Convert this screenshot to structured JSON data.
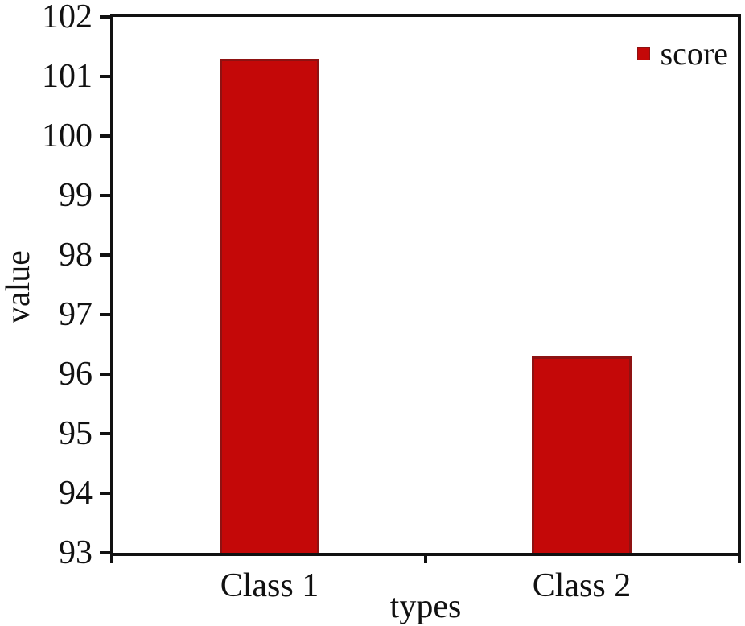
{
  "chart_data": {
    "type": "bar",
    "categories": [
      "Class 1",
      "Class 2"
    ],
    "series": [
      {
        "name": "score",
        "values": [
          101.3,
          96.3
        ]
      }
    ],
    "title": "",
    "xlabel": "types",
    "ylabel": "value",
    "ylim": [
      93,
      102
    ],
    "yticks": [
      93,
      94,
      95,
      96,
      97,
      98,
      99,
      100,
      101,
      102
    ],
    "grid": false,
    "legend_position": "top-right-inside",
    "colors": {
      "bar_fill": "#c40808",
      "bar_border": "#8e1212",
      "axis": "#111111",
      "text": "#111111",
      "background": "#ffffff"
    }
  },
  "legend": {
    "items": [
      {
        "label": "score",
        "color": "#c40808"
      }
    ]
  },
  "axes": {
    "x_title": "types",
    "y_title": "value"
  }
}
